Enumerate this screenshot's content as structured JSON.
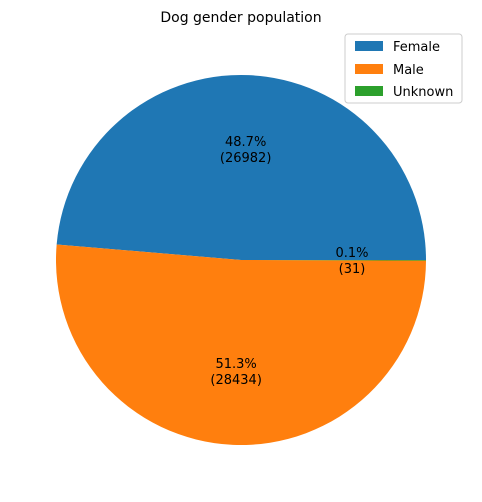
{
  "chart_data": {
    "type": "pie",
    "title": "Dog gender population",
    "categories": [
      "Female",
      "Male",
      "Unknown"
    ],
    "values": [
      26982,
      28434,
      31
    ],
    "percent_labels": [
      "48.7%",
      "51.3%",
      "0.1%"
    ],
    "count_labels": [
      "(26982)",
      "(28434)",
      "(31)"
    ],
    "colors": [
      "#1f77b4",
      "#ff7f0e",
      "#2ca02c"
    ],
    "start_angle_deg": 0,
    "direction": "counterclockwise",
    "legend": {
      "placement": "top-right",
      "entries": [
        "Female",
        "Male",
        "Unknown"
      ]
    }
  }
}
